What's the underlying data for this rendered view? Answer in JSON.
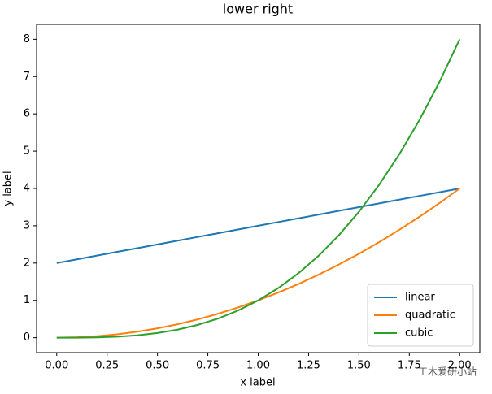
{
  "chart_data": {
    "type": "line",
    "title": "lower right",
    "x_label": "x label",
    "y_label": "y label",
    "x": [
      0,
      0.1,
      0.2,
      0.3,
      0.4,
      0.5,
      0.6,
      0.7,
      0.8,
      0.9,
      1,
      1.1,
      1.2,
      1.3,
      1.4,
      1.5,
      1.6,
      1.7,
      1.8,
      1.9,
      2
    ],
    "series": [
      {
        "name": "linear",
        "color": "#1f77b4",
        "values": [
          2,
          2.1,
          2.2,
          2.3,
          2.4,
          2.5,
          2.6,
          2.7,
          2.8,
          2.9,
          3,
          3.1,
          3.2,
          3.3,
          3.4,
          3.5,
          3.6,
          3.7,
          3.8,
          3.9,
          4
        ]
      },
      {
        "name": "quadratic",
        "color": "#ff7f0e",
        "values": [
          0,
          0.01,
          0.04,
          0.09,
          0.16,
          0.25,
          0.36,
          0.49,
          0.64,
          0.81,
          1,
          1.21,
          1.44,
          1.69,
          1.96,
          2.25,
          2.56,
          2.89,
          3.24,
          3.61,
          4
        ]
      },
      {
        "name": "cubic",
        "color": "#2ca02c",
        "values": [
          0,
          0.001,
          0.008,
          0.027,
          0.064,
          0.125,
          0.216,
          0.343,
          0.512,
          0.729,
          1,
          1.331,
          1.728,
          2.197,
          2.744,
          3.375,
          4.096,
          4.913,
          5.832,
          6.859,
          8
        ]
      }
    ],
    "xlim": [
      -0.1,
      2.1
    ],
    "ylim": [
      -0.4,
      8.4
    ],
    "xticks": [
      {
        "value": 0,
        "label": "0.00"
      },
      {
        "value": 0.25,
        "label": "0.25"
      },
      {
        "value": 0.5,
        "label": "0.50"
      },
      {
        "value": 0.75,
        "label": "0.75"
      },
      {
        "value": 1,
        "label": "1.00"
      },
      {
        "value": 1.25,
        "label": "1.25"
      },
      {
        "value": 1.5,
        "label": "1.50"
      },
      {
        "value": 1.75,
        "label": "1.75"
      },
      {
        "value": 2,
        "label": "2.00"
      }
    ],
    "yticks": [
      0,
      1,
      2,
      3,
      4,
      5,
      6,
      7,
      8
    ],
    "legend": "lower right",
    "grid": false
  },
  "watermark": "工木爱研小站"
}
